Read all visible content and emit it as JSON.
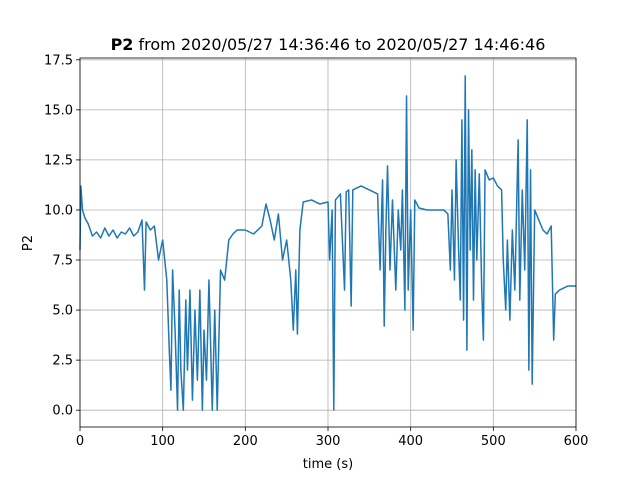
{
  "chart_data": {
    "type": "line",
    "title": [
      "P2",
      "from 2020/05/27 14:36:46 to 2020/05/27 14:46:46"
    ],
    "xlabel": "time (s)",
    "ylabel": "P2",
    "xlim": [
      0,
      600
    ],
    "xticks": [
      0,
      100,
      200,
      300,
      400,
      500,
      600
    ],
    "ylim": [
      -0.84,
      17.59
    ],
    "yticks": [
      {
        "value": 0,
        "label": "0.0"
      },
      2.5,
      {
        "value": 5,
        "label": "5.0"
      },
      7.5,
      {
        "value": 10,
        "label": "10.0"
      },
      12.5,
      {
        "value": 15,
        "label": "15.0"
      },
      17.5
    ],
    "grid": true,
    "series": [
      {
        "name": "P2",
        "color": "#1f77b4",
        "x": [
          0,
          1,
          3,
          6,
          10,
          15,
          20,
          25,
          30,
          35,
          40,
          45,
          50,
          55,
          60,
          65,
          70,
          75,
          78,
          80,
          85,
          90,
          95,
          100,
          105,
          108,
          110,
          112,
          115,
          118,
          120,
          122,
          125,
          128,
          130,
          133,
          136,
          139,
          142,
          145,
          148,
          150,
          153,
          156,
          160,
          163,
          166,
          170,
          175,
          180,
          185,
          190,
          200,
          210,
          220,
          225,
          230,
          235,
          240,
          245,
          250,
          255,
          258,
          261,
          263,
          266,
          270,
          280,
          290,
          300,
          302,
          305,
          307,
          309,
          315,
          320,
          322,
          325,
          328,
          330,
          340,
          350,
          360,
          363,
          366,
          368,
          370,
          372,
          375,
          378,
          382,
          385,
          388,
          390,
          393,
          395,
          397,
          400,
          403,
          405,
          410,
          420,
          430,
          440,
          445,
          448,
          450,
          453,
          455,
          458,
          460,
          462,
          464,
          466,
          468,
          470,
          472,
          474,
          476,
          478,
          480,
          483,
          486,
          488,
          490,
          495,
          500,
          505,
          510,
          512,
          515,
          517,
          520,
          523,
          526,
          530,
          532,
          535,
          538,
          541,
          543,
          545,
          547,
          550,
          555,
          560,
          565,
          570,
          573,
          575,
          580,
          590,
          600
        ],
        "values": [
          8,
          11.2,
          10,
          9.6,
          9.3,
          8.7,
          8.9,
          8.6,
          9.1,
          8.7,
          9.0,
          8.6,
          8.9,
          8.8,
          9.1,
          8.7,
          8.9,
          9.5,
          6,
          9.4,
          9.0,
          9.2,
          7.5,
          8.5,
          6.5,
          3,
          1,
          7,
          4,
          0,
          6,
          2,
          0,
          5.5,
          2,
          6,
          0.5,
          5,
          1.5,
          6,
          0,
          4,
          1.5,
          6.5,
          0,
          5,
          0,
          7,
          6.5,
          8.5,
          8.8,
          9,
          9,
          8.8,
          9.2,
          10.3,
          9.5,
          8.5,
          9.8,
          7.5,
          8.5,
          6.5,
          4,
          7,
          3.8,
          9,
          10.4,
          10.5,
          10.3,
          10.4,
          7.5,
          10,
          0,
          10.5,
          10.8,
          6,
          10.9,
          11,
          5.2,
          11,
          11.2,
          11,
          10.8,
          7,
          11.5,
          4.2,
          9,
          12.2,
          7,
          10.5,
          6,
          10,
          8,
          11,
          5,
          15.7,
          6,
          10,
          4,
          10.5,
          10.1,
          10,
          10,
          10,
          9.8,
          7,
          11,
          6.5,
          12.5,
          8,
          5.5,
          14.5,
          4.5,
          16.7,
          3,
          15,
          8,
          13,
          5.5,
          12,
          7.5,
          11.8,
          6,
          3.5,
          12,
          11.5,
          11.6,
          11.2,
          11,
          7.5,
          5,
          8.5,
          4.5,
          9,
          6,
          13.5,
          5.5,
          11,
          7,
          14.5,
          2,
          12,
          1.3,
          10,
          9.5,
          9,
          8.8,
          9.2,
          3.5,
          5.8,
          6,
          6.2,
          6.2
        ]
      }
    ]
  }
}
